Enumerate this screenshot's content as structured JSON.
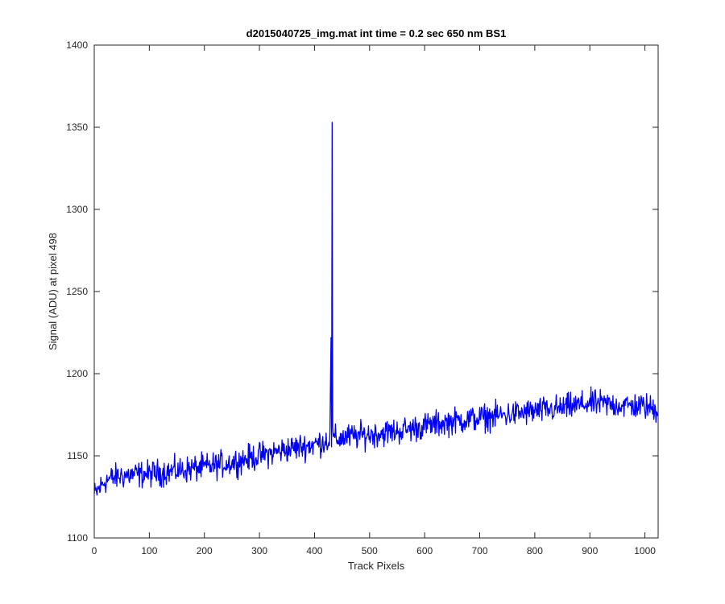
{
  "chart_data": {
    "type": "line",
    "title": "d2015040725_img.mat int time = 0.2 sec  650 nm BS1",
    "xlabel": "Track Pixels",
    "ylabel": "Signal (ADU) at pixel 498",
    "xlim": [
      0,
      1024
    ],
    "ylim": [
      1100,
      1400
    ],
    "xticks": [
      0,
      100,
      200,
      300,
      400,
      500,
      600,
      700,
      800,
      900,
      1000
    ],
    "yticks": [
      1100,
      1150,
      1200,
      1250,
      1300,
      1350,
      1400
    ],
    "grid": false,
    "line_color": "#0000ff",
    "series": [
      {
        "x": [
          0,
          20,
          50,
          100,
          150,
          200,
          250,
          300,
          350,
          400,
          428,
          430,
          431,
          432,
          433,
          434,
          435,
          440,
          450,
          500,
          550,
          600,
          650,
          700,
          750,
          800,
          850,
          900,
          950,
          1000,
          1023
        ],
        "y": [
          1126,
          1135,
          1138,
          1139,
          1141,
          1143,
          1146,
          1150,
          1154,
          1157,
          1160,
          1222,
          1160,
          1353,
          1161,
          1162,
          1160,
          1160,
          1161,
          1163,
          1165,
          1168,
          1171,
          1173,
          1175,
          1177,
          1179,
          1182,
          1181,
          1180,
          1178
        ],
        "noise_amplitude": 4
      }
    ]
  }
}
